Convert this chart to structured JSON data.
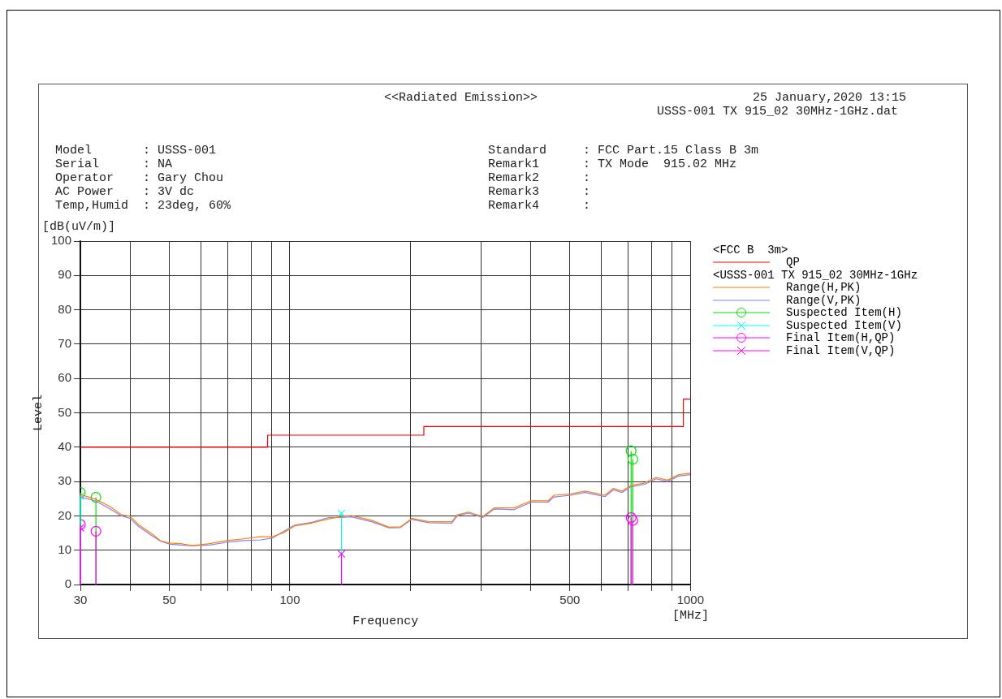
{
  "chart_data": {
    "type": "line",
    "title": "<<Radiated Emission>>",
    "subtitle": "25 January,2020 13:15",
    "xlabel": "Frequency",
    "ylabel": "Level",
    "annotations": [
      "USSS-001 TX 915_02 30MHz-1GHz.dat",
      "Model       : USSS-001",
      "Serial      : NA",
      "Operator    : Gary Chou",
      "AC Power    : 3V dc",
      "Temp,Humid  : 23deg, 60%",
      "Standard     : FCC Part.15 Class B 3m",
      "Remark1      : TX Mode  915.02 MHz",
      "Remark2      :",
      "Remark3      :",
      "Remark4      :",
      "[dB(uV/m)]",
      "[MHz]",
      "<FCC B  3m>",
      "<USSS-001 TX 915_02 30MHz-1GHz"
    ],
    "log": "x",
    "xlim": [
      30,
      1000
    ],
    "xticks": [
      30,
      {
        "value": 40,
        "label": null
      },
      50,
      {
        "value": 60,
        "label": null
      },
      {
        "value": 70,
        "label": null
      },
      {
        "value": 80,
        "label": null
      },
      {
        "value": 90,
        "label": null
      },
      100,
      {
        "value": 200,
        "label": null
      },
      {
        "value": 300,
        "label": null
      },
      {
        "value": 400,
        "label": null
      },
      500,
      {
        "value": 600,
        "label": null
      },
      {
        "value": 700,
        "label": null
      },
      {
        "value": 800,
        "label": null
      },
      {
        "value": 900,
        "label": null
      },
      1000
    ],
    "ylim": [
      0,
      100
    ],
    "yticks": [
      0,
      10,
      20,
      30,
      40,
      50,
      60,
      70,
      80,
      90,
      100
    ],
    "grid": true,
    "legend": "right",
    "series": [
      {
        "name": "QP",
        "type": "step",
        "color": "#ff0000",
        "x": [
          30,
          88,
          216,
          960,
          1000
        ],
        "values": [
          40,
          43.5,
          46,
          54,
          54
        ]
      },
      {
        "name": "Range(H,PK)",
        "color": "#ff8000",
        "x": [
          30,
          32.8,
          35.6,
          38,
          39.9,
          41.8,
          45.3,
          47.6,
          50,
          53.4,
          57,
          63,
          69.5,
          76.6,
          84.5,
          90.3,
          96.4,
          102.9,
          113.5,
          125.1,
          133.5,
          142.5,
          160,
          176.7,
          188.8,
          201.6,
          222.3,
          253.5,
          261.9,
          279.6,
          303,
          323.6,
          363.2,
          400.5,
          441.5,
          456.2,
          503,
          545.9,
          611.8,
          642.4,
          674.6,
          708.4,
          769.3,
          821.1,
          876.7,
          935.9,
          1000
        ],
        "values": [
          26.2,
          24.8,
          22.7,
          20.3,
          19.9,
          17.5,
          14.7,
          12.7,
          12.1,
          11.9,
          11.3,
          11.9,
          12.8,
          13.3,
          13.9,
          13.9,
          15.1,
          17.1,
          17.9,
          19.1,
          19.7,
          20.1,
          18.7,
          16.7,
          16.8,
          19.3,
          18.3,
          18.3,
          20.3,
          21.1,
          19.8,
          22.3,
          22.3,
          24.4,
          24.4,
          26,
          26.4,
          27.2,
          26,
          28,
          27.2,
          28.8,
          29.6,
          31.2,
          30.4,
          32,
          32.4
        ]
      },
      {
        "name": "Range(V,PK)",
        "color": "#8080ff",
        "x": [
          30,
          32.8,
          35.6,
          38,
          39.9,
          41.8,
          45.3,
          47.6,
          50,
          53.4,
          57,
          63,
          69.5,
          76.6,
          84.5,
          90.3,
          96.4,
          102.9,
          113.5,
          125.1,
          133.5,
          142.5,
          160,
          176.7,
          188.8,
          201.6,
          222.3,
          253.5,
          261.9,
          279.6,
          303,
          323.6,
          363.2,
          400.5,
          441.5,
          456.2,
          503,
          545.9,
          611.8,
          642.4,
          674.6,
          708.4,
          769.3,
          821.1,
          876.7,
          935.9,
          1000
        ],
        "values": [
          25.5,
          24.3,
          22,
          20,
          19.3,
          17,
          14.2,
          12.6,
          11.8,
          11.5,
          11.3,
          11.5,
          12.3,
          12.8,
          13,
          13.5,
          15.5,
          17.3,
          18.1,
          19.5,
          19.5,
          19.7,
          18.3,
          16.5,
          16.6,
          19,
          18,
          17.9,
          20,
          20.8,
          19.5,
          22,
          21.8,
          24,
          24,
          25.5,
          26,
          26.8,
          25.6,
          27.6,
          26.8,
          28.4,
          29.2,
          30.8,
          30,
          31.6,
          32
        ]
      },
      {
        "name": "Suspected Item(H)",
        "type": "lollipop",
        "marker": "circle",
        "color": "#00e000",
        "x": [
          30,
          32.8,
          711,
          718
        ],
        "values": [
          26.8,
          25.4,
          38.9,
          36.5
        ]
      },
      {
        "name": "Suspected Item(V)",
        "type": "lollipop",
        "marker": "cross",
        "color": "#00ffff",
        "x": [
          30,
          134.5
        ],
        "values": [
          25.7,
          20.7
        ]
      },
      {
        "name": "Final Item(H,QP)",
        "type": "lollipop",
        "marker": "circle",
        "color": "#ff00ff",
        "x": [
          30,
          32.8,
          711,
          718
        ],
        "values": [
          17.5,
          15.5,
          19.5,
          18.7
        ]
      },
      {
        "name": "Final Item(V,QP)",
        "type": "lollipop",
        "marker": "cross",
        "color": "#ff00ff",
        "x": [
          30,
          134.5
        ],
        "values": [
          16.5,
          8.9
        ]
      }
    ]
  }
}
